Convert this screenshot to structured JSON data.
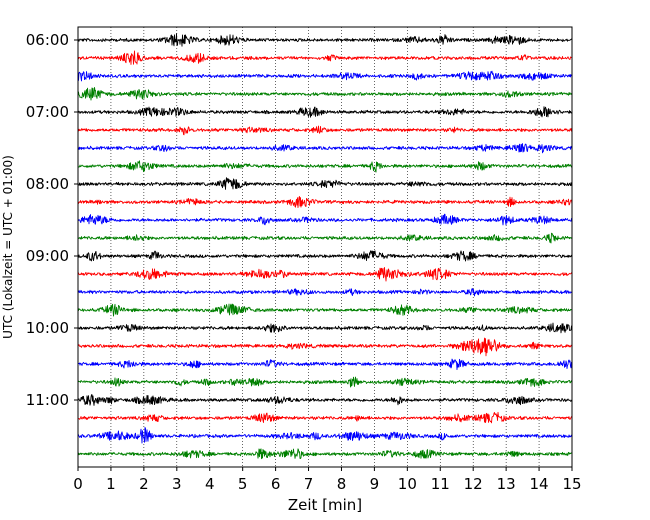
{
  "chart_data": {
    "type": "line",
    "title": "",
    "xlabel": "Zeit  [min]",
    "ylabel": "UTC (Lokalzeit = UTC + 01:00)",
    "xlim": [
      0,
      15
    ],
    "x_ticks": [
      0,
      1,
      2,
      3,
      4,
      5,
      6,
      7,
      8,
      9,
      10,
      11,
      12,
      13,
      14,
      15
    ],
    "y_tick_labels": [
      "06:00",
      "07:00",
      "08:00",
      "09:00",
      "10:00",
      "11:00"
    ],
    "start_time": "06:00",
    "trace_minutes": 15,
    "trace_count": 24,
    "trace_colors": [
      "#000000",
      "#ff0000",
      "#0000ff",
      "#008000"
    ],
    "grid": "vertical dotted lines at each minute",
    "legend": "none"
  }
}
